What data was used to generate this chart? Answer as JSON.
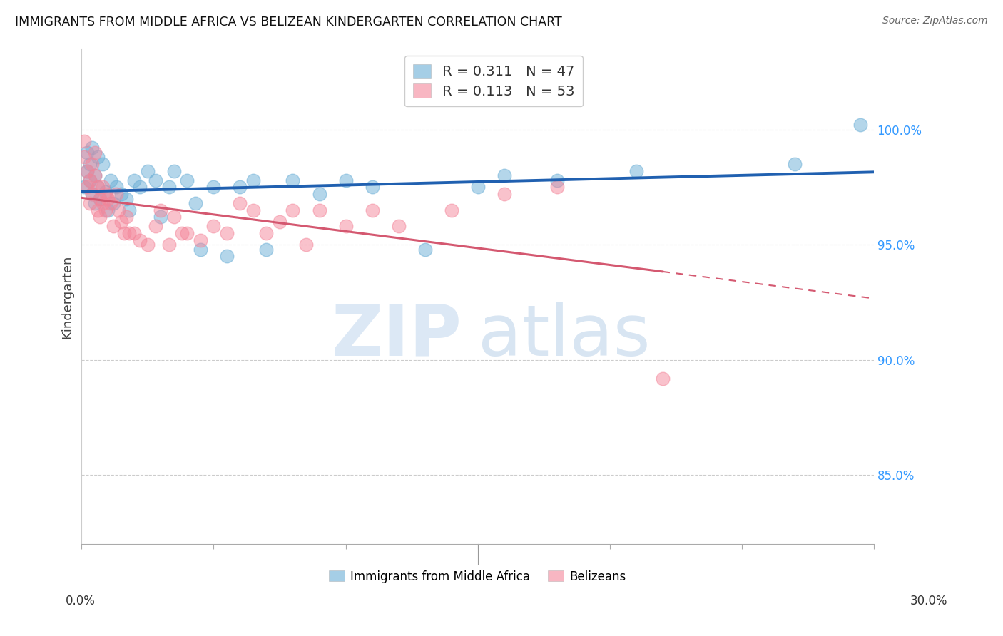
{
  "title": "IMMIGRANTS FROM MIDDLE AFRICA VS BELIZEAN KINDERGARTEN CORRELATION CHART",
  "source": "Source: ZipAtlas.com",
  "ylabel": "Kindergarten",
  "x_range": [
    0.0,
    0.3
  ],
  "y_range": [
    82.0,
    103.5
  ],
  "y_ticks": [
    85.0,
    90.0,
    95.0,
    100.0
  ],
  "y_tick_labels": [
    "85.0%",
    "90.0%",
    "95.0%",
    "100.0%"
  ],
  "legend_blue_R": "R = 0.311",
  "legend_blue_N": "N = 47",
  "legend_pink_R": "R = 0.113",
  "legend_pink_N": "N = 53",
  "blue_color": "#6aaed6",
  "pink_color": "#f4869a",
  "blue_line_color": "#2060b0",
  "pink_line_color": "#d45870",
  "blue_scatter_x": [
    0.001,
    0.002,
    0.002,
    0.003,
    0.003,
    0.004,
    0.004,
    0.005,
    0.005,
    0.006,
    0.006,
    0.007,
    0.008,
    0.009,
    0.01,
    0.011,
    0.012,
    0.013,
    0.015,
    0.017,
    0.018,
    0.02,
    0.022,
    0.025,
    0.028,
    0.03,
    0.033,
    0.035,
    0.04,
    0.043,
    0.045,
    0.05,
    0.055,
    0.06,
    0.065,
    0.07,
    0.08,
    0.09,
    0.1,
    0.11,
    0.13,
    0.15,
    0.16,
    0.18,
    0.21,
    0.27,
    0.295
  ],
  "blue_scatter_y": [
    97.5,
    98.2,
    99.0,
    97.8,
    98.5,
    97.2,
    99.2,
    96.8,
    98.0,
    97.5,
    98.8,
    97.0,
    98.5,
    97.3,
    96.5,
    97.8,
    96.8,
    97.5,
    97.2,
    97.0,
    96.5,
    97.8,
    97.5,
    98.2,
    97.8,
    96.2,
    97.5,
    98.2,
    97.8,
    96.8,
    94.8,
    97.5,
    94.5,
    97.5,
    97.8,
    94.8,
    97.8,
    97.2,
    97.8,
    97.5,
    94.8,
    97.5,
    98.0,
    97.8,
    98.2,
    98.5,
    100.2
  ],
  "pink_scatter_x": [
    0.001,
    0.001,
    0.002,
    0.002,
    0.003,
    0.003,
    0.004,
    0.004,
    0.005,
    0.005,
    0.006,
    0.006,
    0.007,
    0.007,
    0.008,
    0.008,
    0.009,
    0.009,
    0.01,
    0.011,
    0.012,
    0.013,
    0.014,
    0.015,
    0.016,
    0.017,
    0.018,
    0.02,
    0.022,
    0.025,
    0.028,
    0.03,
    0.033,
    0.035,
    0.038,
    0.04,
    0.045,
    0.05,
    0.055,
    0.06,
    0.065,
    0.07,
    0.075,
    0.08,
    0.085,
    0.09,
    0.1,
    0.11,
    0.12,
    0.14,
    0.16,
    0.18,
    0.22
  ],
  "pink_scatter_y": [
    99.5,
    98.8,
    98.2,
    97.5,
    97.8,
    96.8,
    98.5,
    97.2,
    99.0,
    98.0,
    97.5,
    96.5,
    97.0,
    96.2,
    97.5,
    96.8,
    97.2,
    96.5,
    97.0,
    96.8,
    95.8,
    97.2,
    96.5,
    96.0,
    95.5,
    96.2,
    95.5,
    95.5,
    95.2,
    95.0,
    95.8,
    96.5,
    95.0,
    96.2,
    95.5,
    95.5,
    95.2,
    95.8,
    95.5,
    96.8,
    96.5,
    95.5,
    96.0,
    96.5,
    95.0,
    96.5,
    95.8,
    96.5,
    95.8,
    96.5,
    97.2,
    97.5,
    89.2
  ]
}
